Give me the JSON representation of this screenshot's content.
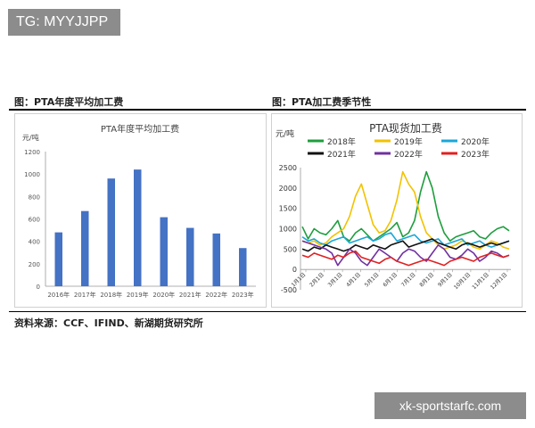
{
  "watermark": {
    "top": "TG: MYYJJPP",
    "bottom": "xk-sportstarfc.com"
  },
  "figures": {
    "left_title": "图：PTA年度平均加工费",
    "right_title": "图：PTA加工费季节性"
  },
  "source": "资料来源：CCF、IFIND、新湖期货研究所",
  "colors": {
    "bar": "#4472c4"
  },
  "chart_data": [
    {
      "type": "bar",
      "title": "PTA年度平均加工费",
      "ylabel": "元/吨",
      "categories": [
        "2016年",
        "2017年",
        "2018年",
        "2019年",
        "2020年",
        "2021年",
        "2022年",
        "2023年"
      ],
      "values": [
        480,
        670,
        960,
        1040,
        615,
        520,
        470,
        340
      ],
      "ylim": [
        0,
        1200
      ],
      "yticks": [
        "0",
        "200",
        "400",
        "600",
        "800",
        "1000",
        "1200"
      ],
      "grid": false,
      "legend": "none"
    },
    {
      "type": "line",
      "title": "PTA现货加工费",
      "ylabel": "元/吨",
      "ylim": [
        -500,
        2500
      ],
      "yticks": [
        "-500",
        "0",
        "500",
        "1000",
        "1500",
        "2000",
        "2500"
      ],
      "xticks": [
        "1月1日",
        "2月1日",
        "3月1日",
        "4月1日",
        "5月1日",
        "6月1日",
        "7月1日",
        "8月1日",
        "9月1日",
        "10月1日",
        "11月1日",
        "12月1日"
      ],
      "legend": "top",
      "series": [
        {
          "name": "2018年",
          "color": "#1e9e3e",
          "values": [
            1050,
            750,
            1000,
            900,
            850,
            1000,
            1200,
            800,
            700,
            900,
            1000,
            850,
            700,
            800,
            900,
            1000,
            1150,
            800,
            900,
            1200,
            1900,
            2400,
            2000,
            1300,
            900,
            700,
            800,
            850,
            900,
            950,
            800,
            750,
            900,
            1000,
            1050,
            950
          ]
        },
        {
          "name": "2019年",
          "color": "#f2c200",
          "values": [
            700,
            650,
            700,
            600,
            650,
            800,
            900,
            1000,
            1300,
            1800,
            2100,
            1600,
            1100,
            900,
            950,
            1200,
            1700,
            2400,
            2100,
            1900,
            1300,
            900,
            750,
            600,
            500,
            550,
            600,
            700,
            650,
            550,
            500,
            600,
            700,
            650,
            550,
            500
          ]
        },
        {
          "name": "2020年",
          "color": "#1aa7d8",
          "values": [
            800,
            700,
            750,
            650,
            600,
            700,
            750,
            800,
            650,
            700,
            750,
            800,
            700,
            750,
            850,
            900,
            700,
            750,
            800,
            850,
            700,
            650,
            700,
            750,
            600,
            650,
            700,
            750,
            600,
            650,
            700,
            600,
            550,
            600,
            650,
            700
          ]
        },
        {
          "name": "2021年",
          "color": "#111111",
          "values": [
            500,
            450,
            550,
            500,
            600,
            550,
            500,
            450,
            500,
            600,
            550,
            500,
            600,
            550,
            500,
            600,
            650,
            700,
            550,
            600,
            650,
            700,
            750,
            650,
            600,
            550,
            500,
            600,
            650,
            600,
            550,
            600,
            650,
            600,
            650,
            700
          ]
        },
        {
          "name": "2022年",
          "color": "#7030a0",
          "values": [
            700,
            650,
            600,
            550,
            500,
            400,
            100,
            300,
            500,
            400,
            200,
            100,
            300,
            500,
            400,
            300,
            200,
            400,
            500,
            450,
            300,
            200,
            400,
            600,
            500,
            300,
            250,
            350,
            500,
            400,
            200,
            300,
            450,
            400,
            300,
            350
          ]
        },
        {
          "name": "2023年",
          "color": "#e02020",
          "values": [
            350,
            300,
            400,
            350,
            300,
            250,
            350,
            300,
            400,
            450,
            300,
            250,
            200,
            150,
            250,
            300,
            200,
            150,
            100,
            150,
            200,
            250,
            200,
            150,
            100,
            200,
            250,
            300,
            250,
            200,
            300,
            350,
            400,
            350,
            300,
            350
          ]
        }
      ]
    }
  ]
}
